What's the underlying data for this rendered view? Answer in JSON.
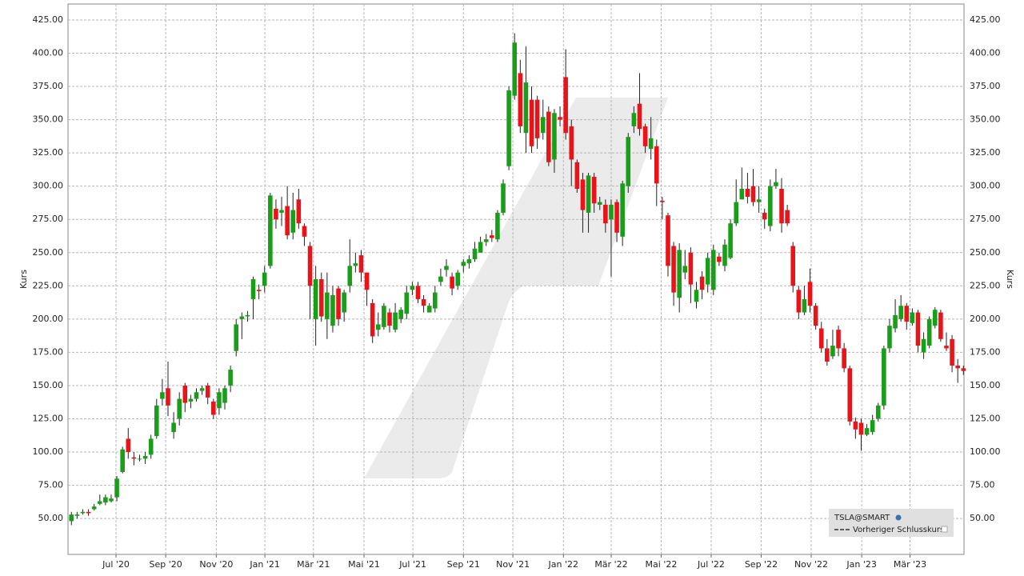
{
  "chart_data": {
    "type": "candlestick",
    "y_label": "Kurs",
    "legend": {
      "symbol": "TSLA@SMART",
      "reference": "Vorheriger Schlusskurs"
    },
    "up_color": "#1a9e1a",
    "down_color": "#e8141a",
    "grid": true,
    "xlim": [
      -0.6,
      157.1
    ],
    "ylim": [
      23,
      437
    ],
    "xticks": [
      {
        "value": 7.85,
        "label": "Jul '20"
      },
      {
        "value": 16.6,
        "label": "Sep '20"
      },
      {
        "value": 25.5,
        "label": "Nov '20"
      },
      {
        "value": 34.05,
        "label": "Jan '21"
      },
      {
        "value": 42.6,
        "label": "Mär '21"
      },
      {
        "value": 51.5,
        "label": "Mai '21"
      },
      {
        "value": 60.1,
        "label": "Jul '21"
      },
      {
        "value": 69.0,
        "label": "Sep '21"
      },
      {
        "value": 77.7,
        "label": "Nov '21"
      },
      {
        "value": 86.6,
        "label": "Jan '22"
      },
      {
        "value": 95.0,
        "label": "Mär '22"
      },
      {
        "value": 103.8,
        "label": "Mai '22"
      },
      {
        "value": 112.6,
        "label": "Jul '22"
      },
      {
        "value": 121.4,
        "label": "Sep '22"
      },
      {
        "value": 130.2,
        "label": "Nov '22"
      },
      {
        "value": 139.1,
        "label": "Jan '23"
      },
      {
        "value": 147.6,
        "label": "Mär '23"
      }
    ],
    "yticks": [
      {
        "value": 50,
        "label": "50.00"
      },
      {
        "value": 75,
        "label": "75.00"
      },
      {
        "value": 100,
        "label": "100.00"
      },
      {
        "value": 125,
        "label": "125.00"
      },
      {
        "value": 150,
        "label": "150.00"
      },
      {
        "value": 175,
        "label": "175.00"
      },
      {
        "value": 200,
        "label": "200.00"
      },
      {
        "value": 225,
        "label": "225.00"
      },
      {
        "value": 250,
        "label": "250.00"
      },
      {
        "value": 275,
        "label": "275.00"
      },
      {
        "value": 300,
        "label": "300.00"
      },
      {
        "value": 325,
        "label": "325.00"
      },
      {
        "value": 350,
        "label": "350.00"
      },
      {
        "value": 375,
        "label": "375.00"
      },
      {
        "value": 400,
        "label": "400.00"
      },
      {
        "value": 425,
        "label": "425.00"
      }
    ],
    "x": [
      0,
      1,
      2,
      3,
      4,
      5,
      6,
      7,
      8,
      9,
      10,
      11,
      12,
      13,
      14,
      15,
      16,
      17,
      18,
      19,
      20,
      21,
      22,
      23,
      24,
      25,
      26,
      27,
      28,
      29,
      30,
      31,
      32,
      33,
      34,
      35,
      36,
      37,
      38,
      39,
      40,
      41,
      42,
      43,
      44,
      45,
      46,
      47,
      48,
      49,
      50,
      51,
      52,
      53,
      54,
      55,
      56,
      57,
      58,
      59,
      60,
      61,
      62,
      63,
      64,
      65,
      66,
      67,
      68,
      69,
      70,
      71,
      72,
      73,
      74,
      75,
      76,
      77,
      78,
      79,
      80,
      81,
      82,
      83,
      84,
      85,
      86,
      87,
      88,
      89,
      90,
      91,
      92,
      93,
      94,
      95,
      96,
      97,
      98,
      99,
      100,
      101,
      102,
      103,
      104,
      105,
      106,
      107,
      108,
      109,
      110,
      111,
      112,
      113,
      114,
      115,
      116,
      117,
      118,
      119,
      120,
      121,
      122,
      123,
      124,
      125,
      126,
      127,
      128,
      129,
      130,
      131,
      132,
      133,
      134,
      135,
      136,
      137,
      138,
      139,
      140,
      141,
      142,
      143,
      144,
      145,
      146,
      147,
      148,
      149,
      150,
      151,
      152,
      153,
      154,
      155,
      156,
      157
    ],
    "open": [
      48,
      52,
      54,
      55,
      57,
      61,
      62,
      63,
      66,
      85,
      110,
      96,
      95,
      95,
      98,
      112,
      140,
      148,
      115,
      125,
      150,
      138,
      140,
      146,
      150,
      138,
      133,
      137,
      150,
      176,
      200,
      202,
      215,
      222,
      225,
      240,
      283,
      280,
      285,
      265,
      290,
      270,
      255,
      200,
      230,
      200,
      195,
      223,
      205,
      225,
      240,
      248,
      235,
      212,
      192,
      194,
      205,
      192,
      200,
      204,
      222,
      225,
      215,
      205,
      208,
      228,
      237,
      232,
      225,
      240,
      242,
      245,
      250,
      258,
      263,
      260,
      280,
      315,
      368,
      385,
      340,
      365,
      365,
      340,
      356,
      320,
      352,
      382,
      345,
      318,
      305,
      280,
      307,
      286,
      286,
      275,
      288,
      262,
      300,
      345,
      362,
      345,
      328,
      330,
      289,
      278,
      255,
      216,
      235,
      250,
      213,
      232,
      226,
      222,
      247,
      240,
      246,
      272,
      290,
      298,
      300,
      288,
      280,
      270,
      300,
      298,
      282,
      255,
      222,
      205,
      228,
      210,
      193,
      178,
      172,
      192,
      178,
      163,
      123,
      122,
      113,
      115,
      125,
      135,
      178,
      193,
      200,
      210,
      197,
      205,
      175,
      180,
      195,
      205,
      180,
      185,
      165,
      163
    ],
    "high": [
      55,
      55,
      57,
      57,
      61,
      68,
      68,
      68,
      82,
      104,
      118,
      100,
      98,
      100,
      113,
      140,
      155,
      168,
      130,
      145,
      152,
      143,
      148,
      150,
      152,
      140,
      148,
      150,
      165,
      200,
      205,
      206,
      232,
      226,
      240,
      295,
      290,
      292,
      300,
      295,
      298,
      272,
      258,
      240,
      235,
      235,
      225,
      225,
      222,
      260,
      250,
      252,
      235,
      215,
      205,
      212,
      208,
      212,
      209,
      225,
      228,
      228,
      218,
      212,
      225,
      238,
      245,
      235,
      237,
      245,
      248,
      258,
      262,
      264,
      267,
      282,
      305,
      375,
      415,
      395,
      405,
      375,
      368,
      365,
      360,
      358,
      360,
      403,
      350,
      320,
      310,
      310,
      310,
      292,
      290,
      290,
      290,
      304,
      340,
      360,
      385,
      347,
      352,
      335,
      292,
      280,
      258,
      257,
      252,
      254,
      228,
      236,
      250,
      256,
      250,
      260,
      275,
      305,
      314,
      310,
      313,
      300,
      283,
      305,
      313,
      306,
      286,
      258,
      225,
      225,
      238,
      212,
      198,
      185,
      192,
      195,
      182,
      165,
      126,
      125,
      121,
      128,
      137,
      180,
      200,
      215,
      218,
      212,
      208,
      207,
      190,
      202,
      209,
      207,
      190,
      188,
      170,
      165
    ],
    "low": [
      45,
      50,
      53,
      52,
      56,
      60,
      60,
      62,
      63,
      84,
      95,
      90,
      93,
      91,
      95,
      110,
      135,
      127,
      110,
      120,
      130,
      133,
      138,
      143,
      136,
      125,
      128,
      132,
      145,
      172,
      185,
      198,
      200,
      215,
      220,
      238,
      268,
      270,
      260,
      260,
      268,
      255,
      200,
      180,
      198,
      185,
      190,
      195,
      198,
      220,
      235,
      228,
      210,
      182,
      187,
      192,
      190,
      190,
      197,
      200,
      218,
      212,
      205,
      205,
      205,
      225,
      232,
      218,
      222,
      235,
      238,
      243,
      250,
      255,
      258,
      258,
      278,
      312,
      365,
      340,
      325,
      325,
      328,
      335,
      315,
      310,
      345,
      335,
      300,
      295,
      265,
      265,
      280,
      282,
      265,
      232,
      258,
      255,
      295,
      340,
      338,
      325,
      320,
      285,
      275,
      232,
      210,
      205,
      230,
      212,
      208,
      215,
      220,
      218,
      240,
      236,
      245,
      270,
      290,
      287,
      285,
      280,
      268,
      266,
      298,
      265,
      270,
      220,
      200,
      203,
      205,
      192,
      175,
      165,
      170,
      172,
      160,
      120,
      110,
      101,
      112,
      113,
      123,
      132,
      175,
      190,
      198,
      192,
      195,
      175,
      170,
      178,
      193,
      183,
      176,
      160,
      152,
      158
    ],
    "close": [
      53,
      53,
      55,
      54,
      59,
      63,
      66,
      65,
      80,
      102,
      100,
      95,
      95,
      97,
      110,
      135,
      145,
      135,
      122,
      140,
      137,
      140,
      145,
      148,
      141,
      128,
      145,
      148,
      162,
      196,
      202,
      203,
      230,
      221,
      235,
      293,
      275,
      282,
      263,
      282,
      272,
      262,
      225,
      230,
      202,
      220,
      218,
      200,
      220,
      240,
      242,
      235,
      222,
      187,
      196,
      210,
      195,
      205,
      207,
      220,
      225,
      215,
      210,
      210,
      220,
      232,
      240,
      223,
      235,
      243,
      245,
      253,
      258,
      260,
      261,
      280,
      302,
      372,
      408,
      345,
      378,
      330,
      336,
      352,
      318,
      355,
      350,
      340,
      320,
      298,
      282,
      308,
      287,
      288,
      272,
      286,
      265,
      302,
      337,
      355,
      343,
      330,
      336,
      302,
      288,
      240,
      220,
      252,
      240,
      226,
      222,
      222,
      246,
      252,
      243,
      256,
      272,
      288,
      298,
      292,
      288,
      290,
      275,
      300,
      303,
      272,
      272,
      225,
      205,
      215,
      210,
      195,
      178,
      168,
      180,
      178,
      163,
      123,
      117,
      113,
      118,
      124,
      135,
      178,
      195,
      203,
      210,
      198,
      205,
      180,
      185,
      200,
      207,
      185,
      178,
      165,
      163,
      161
    ]
  }
}
